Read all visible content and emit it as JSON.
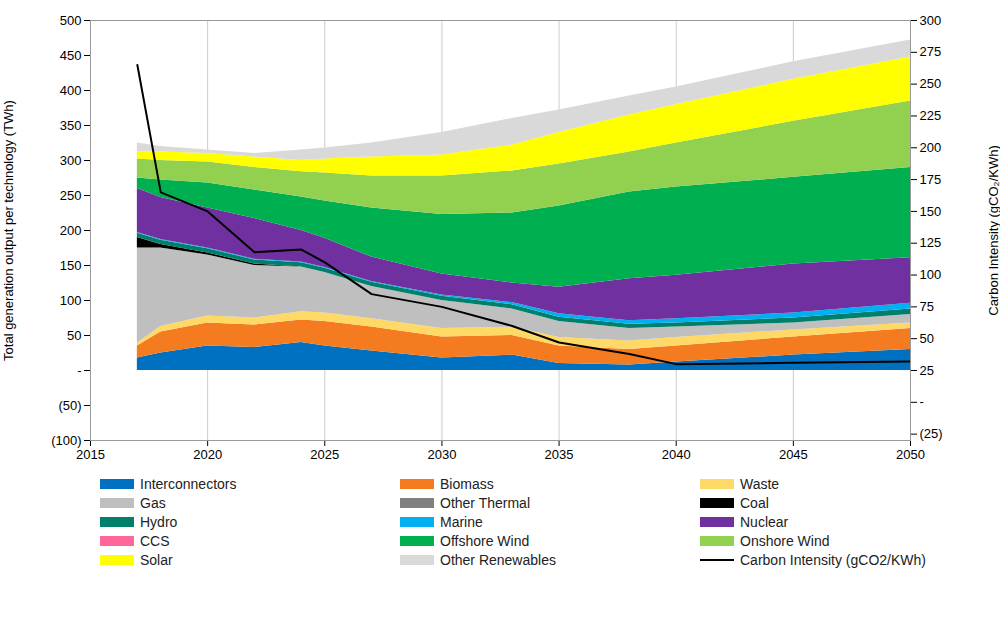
{
  "chart_data": {
    "type": "area",
    "stacked": true,
    "grid": true,
    "legend": "bottom",
    "y_label": "Total generation output per technology (TWh)",
    "y2_label": "Carbon Intensity (gCO₂/KWh)",
    "x": [
      2017,
      2018,
      2020,
      2022,
      2024,
      2025,
      2027,
      2030,
      2033,
      2035,
      2038,
      2040,
      2045,
      2050
    ],
    "xlim": [
      2015,
      2050
    ],
    "xticks": [
      2015,
      2020,
      2025,
      2030,
      2035,
      2040,
      2045,
      2050
    ],
    "ylim": [
      -100,
      500
    ],
    "yticks": [
      {
        "value": -100,
        "label": "(100)"
      },
      {
        "value": -50,
        "label": "(50)"
      },
      {
        "value": 0,
        "label": "-"
      },
      50,
      100,
      150,
      200,
      250,
      300,
      350,
      400,
      450,
      500
    ],
    "y2lim": [
      -30,
      300
    ],
    "y2ticks": [
      {
        "value": -25,
        "label": "(25)"
      },
      {
        "value": 0,
        "label": "-"
      },
      25,
      50,
      75,
      100,
      125,
      150,
      175,
      200,
      225,
      250,
      275,
      300
    ],
    "series": [
      {
        "name": "Interconnectors",
        "color": "#0070c0",
        "values": [
          18,
          25,
          35,
          33,
          40,
          35,
          28,
          18,
          22,
          10,
          8,
          12,
          22,
          30
        ]
      },
      {
        "name": "Biomass",
        "color": "#f47b20",
        "values": [
          17,
          30,
          33,
          32,
          32,
          35,
          34,
          30,
          28,
          25,
          22,
          23,
          26,
          30
        ]
      },
      {
        "name": "Waste",
        "color": "#ffd966",
        "values": [
          4,
          8,
          10,
          10,
          12,
          12,
          12,
          12,
          12,
          12,
          12,
          12,
          10,
          8
        ]
      },
      {
        "name": "Gas",
        "color": "#bfbfbf",
        "values": [
          136,
          112,
          87,
          75,
          64,
          58,
          46,
          40,
          26,
          23,
          18,
          15,
          10,
          12
        ]
      },
      {
        "name": "Other Thermal",
        "color": "#808080",
        "values": [
          0,
          0,
          0,
          0,
          0,
          0,
          0,
          0,
          0,
          0,
          0,
          0,
          0,
          0
        ]
      },
      {
        "name": "Coal",
        "color": "#000000",
        "values": [
          15,
          5,
          3,
          2,
          0,
          0,
          0,
          0,
          0,
          0,
          0,
          0,
          0,
          0
        ]
      },
      {
        "name": "Hydro",
        "color": "#00806a",
        "values": [
          6,
          6,
          6,
          6,
          6,
          6,
          6,
          6,
          6,
          6,
          6,
          6,
          7,
          8
        ]
      },
      {
        "name": "Marine",
        "color": "#00b0f0",
        "values": [
          1,
          1,
          1,
          1,
          1,
          1,
          1,
          2,
          3,
          5,
          5,
          6,
          7,
          8
        ]
      },
      {
        "name": "Nuclear",
        "color": "#7030a0",
        "values": [
          63,
          60,
          57,
          58,
          45,
          42,
          35,
          30,
          28,
          38,
          60,
          62,
          70,
          65
        ]
      },
      {
        "name": "CCS",
        "color": "#ff6699",
        "values": [
          0,
          0,
          0,
          0,
          0,
          0,
          0,
          0,
          0,
          0,
          0,
          0,
          0,
          0
        ]
      },
      {
        "name": "Offshore Wind",
        "color": "#00b050",
        "values": [
          15,
          25,
          36,
          41,
          48,
          53,
          70,
          85,
          100,
          116,
          124,
          126,
          124,
          129
        ]
      },
      {
        "name": "Onshore Wind",
        "color": "#92d050",
        "values": [
          27,
          28,
          30,
          32,
          36,
          40,
          46,
          55,
          60,
          60,
          57,
          63,
          80,
          95
        ]
      },
      {
        "name": "Solar",
        "color": "#ffff00",
        "values": [
          10,
          12,
          12,
          15,
          16,
          20,
          27,
          30,
          37,
          45,
          53,
          55,
          60,
          63
        ]
      },
      {
        "name": "Other Renewables",
        "color": "#d9d9d9",
        "values": [
          13,
          8,
          5,
          5,
          15,
          16,
          20,
          32,
          38,
          32,
          27,
          25,
          25,
          24
        ]
      },
      {
        "name": "Carbon Intensity (gCO2/KWh)",
        "type": "line",
        "axis": "y2",
        "color": "#000000",
        "values": [
          265,
          165,
          150,
          118,
          120,
          110,
          85,
          75,
          60,
          47,
          38,
          30,
          31,
          32
        ]
      }
    ]
  }
}
